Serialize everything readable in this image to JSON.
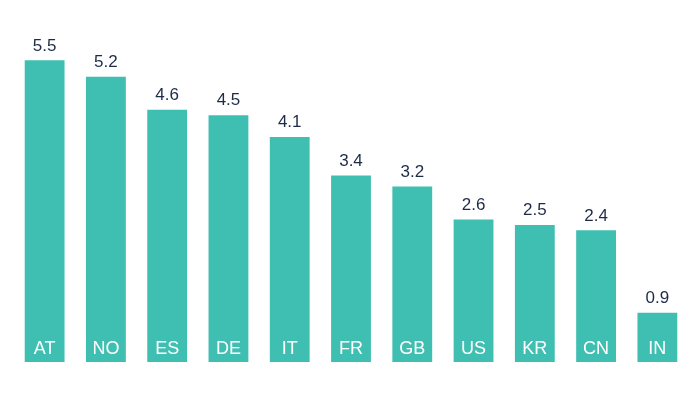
{
  "chart_data": {
    "type": "bar",
    "categories": [
      "AT",
      "NO",
      "ES",
      "DE",
      "IT",
      "FR",
      "GB",
      "US",
      "KR",
      "CN",
      "IN"
    ],
    "values": [
      5.5,
      5.2,
      4.6,
      4.5,
      4.1,
      3.4,
      3.2,
      2.6,
      2.5,
      2.4,
      0.9
    ],
    "color": "#3fbfb2",
    "ylim": [
      0,
      6.6
    ],
    "grid": false,
    "data_labels": true,
    "tick_labels": false
  }
}
